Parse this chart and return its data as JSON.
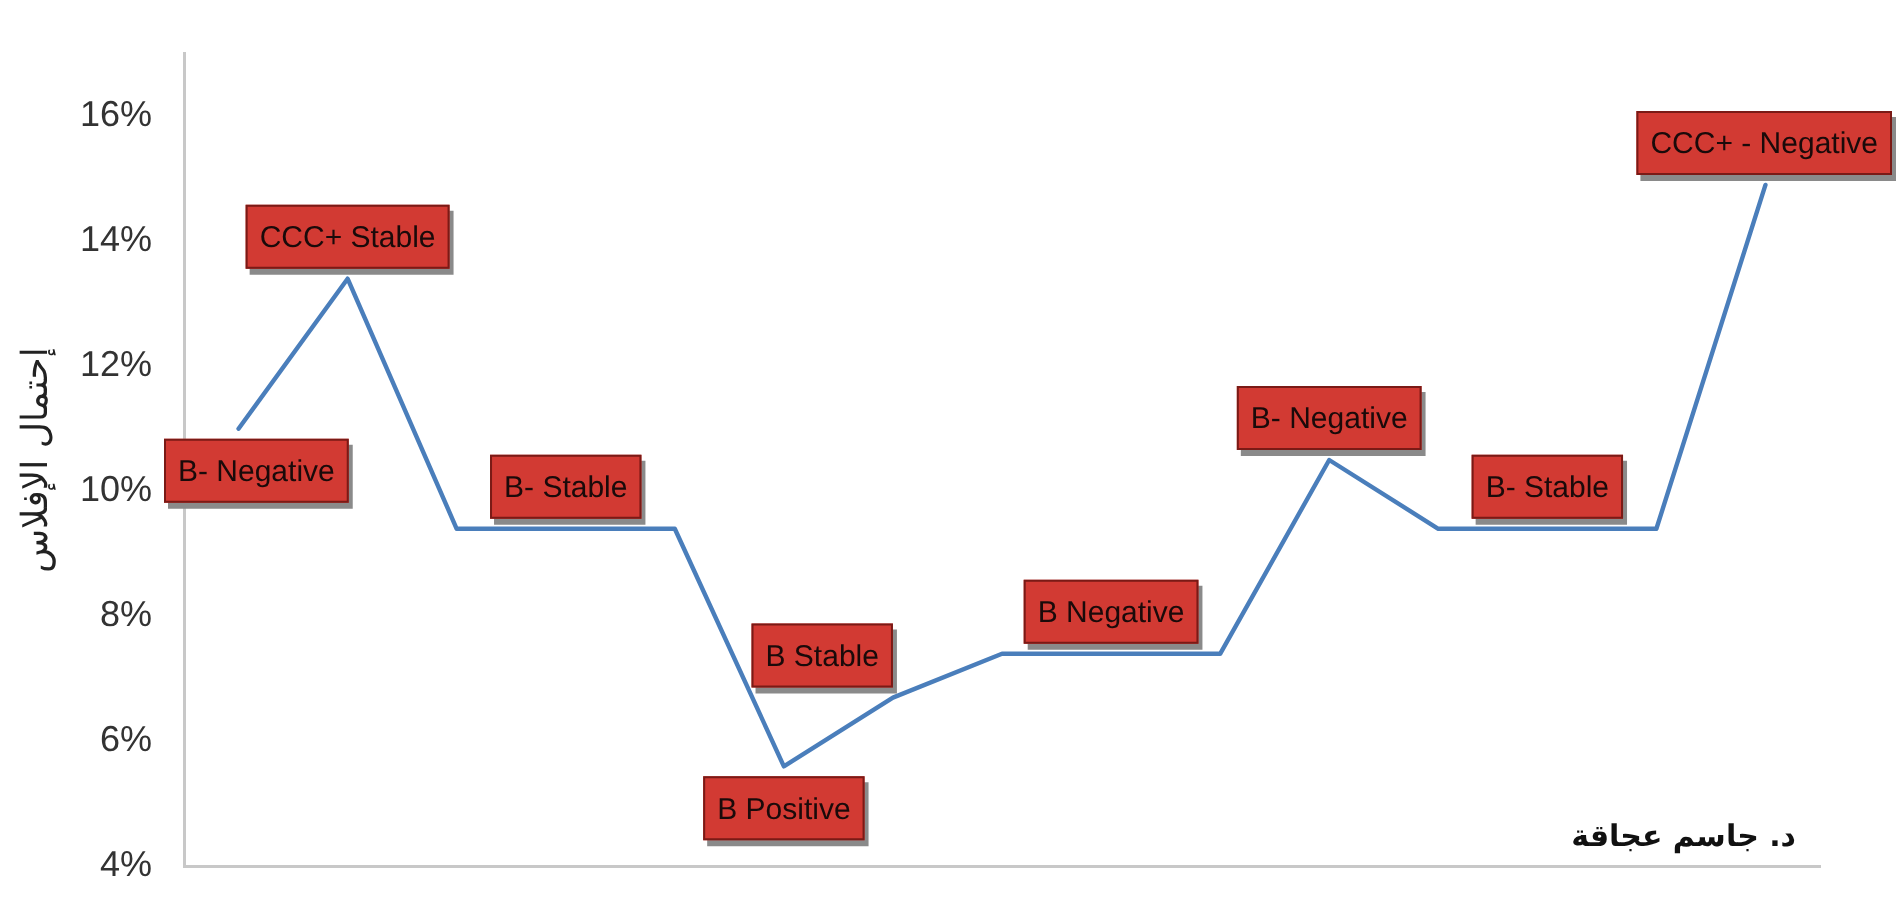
{
  "chart_data": {
    "type": "line",
    "ylabel": "إحتمال الإفلاس",
    "categories": [
      null,
      null,
      null,
      null,
      null,
      null,
      null,
      null,
      null,
      null,
      null,
      null,
      null,
      null,
      null
    ],
    "values": [
      11,
      13.4,
      9.4,
      9.4,
      9.4,
      5.6,
      6.7,
      7.4,
      7.4,
      7.4,
      10.5,
      9.4,
      9.4,
      9.4,
      14.9
    ],
    "value_labels": [
      "B- Negative",
      "CCC+ Stable",
      null,
      "B- Stable",
      null,
      "B Positive",
      "B Stable",
      null,
      "B Negative",
      null,
      "B- Negative",
      null,
      "B- Stable",
      null,
      "CCC+ - Negative"
    ],
    "color": "#4a7ebb",
    "ylim": [
      4,
      17
    ],
    "yticks": [
      {
        "value": 4,
        "label": "4%"
      },
      {
        "value": 6,
        "label": "6%"
      },
      {
        "value": 8,
        "label": "8%"
      },
      {
        "value": 10,
        "label": "10%"
      },
      {
        "value": 12,
        "label": "12%"
      },
      {
        "value": 14,
        "label": "14%"
      },
      {
        "value": 16,
        "label": "16%"
      }
    ],
    "tick_labels": "y",
    "marker": "none",
    "line_style": "solid",
    "annotations": [
      "د. جاسم عجاقة"
    ]
  }
}
